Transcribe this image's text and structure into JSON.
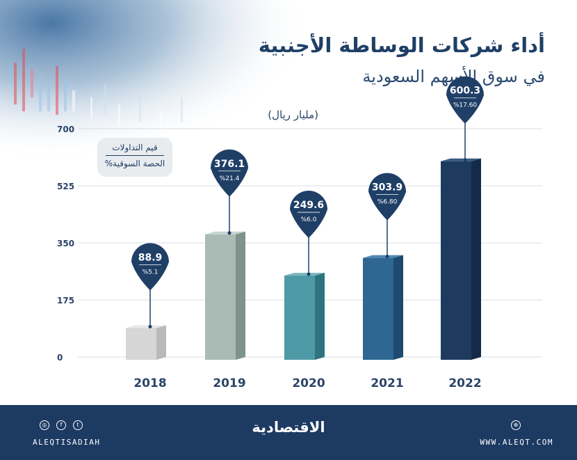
{
  "header": {
    "title": "أداء شركات الوساطة الأجنبية",
    "subtitle": "في سوق الأسهم السعودية",
    "unit": "(مليار ريال)"
  },
  "legend": {
    "line1": "قيم التداولات",
    "line2": "الحصة السوقية%"
  },
  "chart_data": {
    "type": "bar",
    "categories": [
      "2018",
      "2019",
      "2020",
      "2021",
      "2022"
    ],
    "values": [
      88.9,
      376.1,
      249.6,
      303.9,
      600.3
    ],
    "value_labels": [
      "88.9",
      "376.1",
      "249.6",
      "303.9",
      "600.3"
    ],
    "share_labels": [
      "%5.1",
      "%21.4",
      "%6.0",
      "%6.80",
      "%17.60"
    ],
    "yticks": [
      0,
      175,
      350,
      525,
      700
    ],
    "ylim": [
      0,
      700
    ],
    "grid": true,
    "colors": {
      "front": [
        "#d6d6d6",
        "#a9bbb4",
        "#4d9aa6",
        "#2d6792",
        "#1f3a5f"
      ],
      "side": [
        "#b9b9b9",
        "#7f928c",
        "#2d747f",
        "#1d4a6e",
        "#142b47"
      ],
      "top": [
        "#e8e8e8",
        "#c6d4cf",
        "#7fb8c0",
        "#5287b0",
        "#3a5a80"
      ]
    }
  },
  "footer": {
    "social_handle": "ALEQTISADIAH",
    "site": "WWW.ALEQT.COM",
    "logo": "الاقتصادية"
  },
  "theme": {
    "pin": "#1f3f66",
    "title": "#1f3f66",
    "footer_bg": "#1d3a63"
  }
}
